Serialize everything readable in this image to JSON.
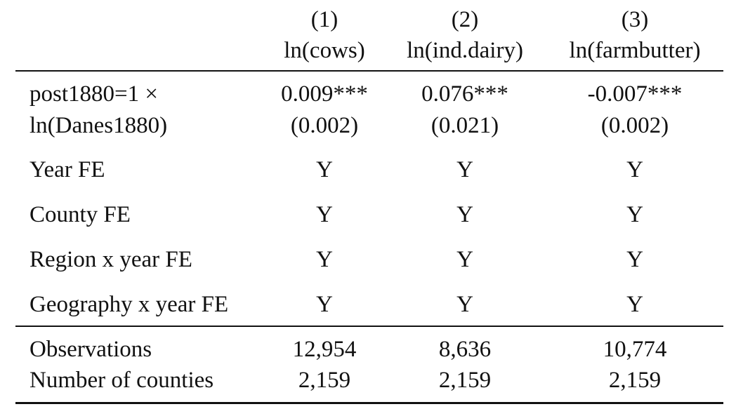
{
  "columns": [
    {
      "number": "(1)",
      "label": "ln(cows)"
    },
    {
      "number": "(2)",
      "label": "ln(ind.dairy)"
    },
    {
      "number": "(3)",
      "label": "ln(farmbutter)"
    }
  ],
  "coef_row": {
    "label_line1": "post1880=1 ×",
    "label_line2": "ln(Danes1880)",
    "estimates": [
      "0.009***",
      "0.076***",
      "-0.007***"
    ],
    "std_errors": [
      "(0.002)",
      "(0.021)",
      "(0.002)"
    ]
  },
  "fe_rows": [
    {
      "label": "Year FE",
      "values": [
        "Y",
        "Y",
        "Y"
      ]
    },
    {
      "label": "County FE",
      "values": [
        "Y",
        "Y",
        "Y"
      ]
    },
    {
      "label": "Region x year FE",
      "values": [
        "Y",
        "Y",
        "Y"
      ]
    },
    {
      "label": "Geography x year FE",
      "values": [
        "Y",
        "Y",
        "Y"
      ]
    }
  ],
  "stats_rows": [
    {
      "label": "Observations",
      "values": [
        "12,954",
        "8,636",
        "10,774"
      ]
    },
    {
      "label": "Number of counties",
      "values": [
        "2,159",
        "2,159",
        "2,159"
      ]
    }
  ]
}
